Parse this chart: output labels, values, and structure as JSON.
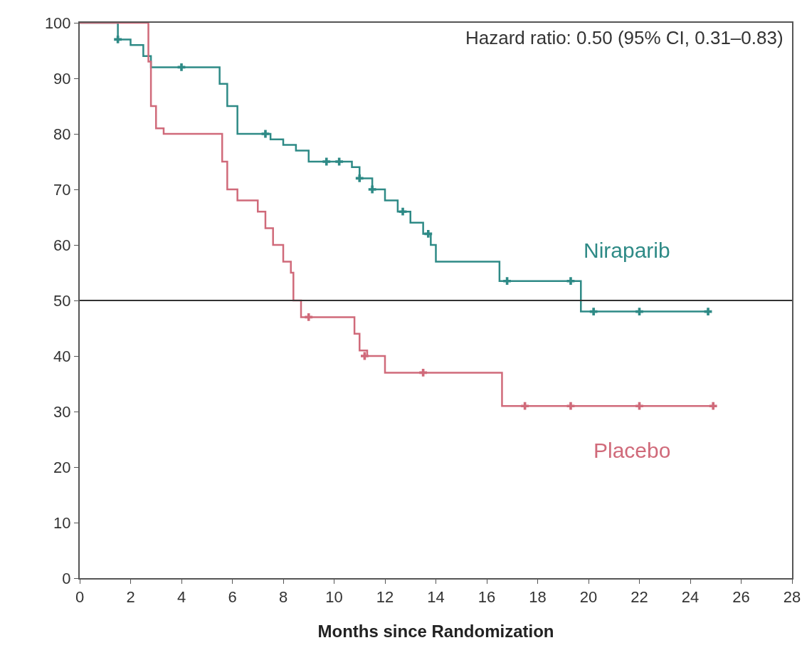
{
  "chart_data": {
    "type": "step",
    "xlabel": "Months since Randomization",
    "annotations": [
      "Hazard ratio: 0.50 (95% CI, 0.31–0.83)"
    ],
    "xlim": [
      0,
      28
    ],
    "xticks": [
      0,
      2,
      4,
      6,
      8,
      10,
      12,
      14,
      16,
      18,
      20,
      22,
      24,
      26,
      28
    ],
    "ylim": [
      0,
      100
    ],
    "yticks": [
      0,
      10,
      20,
      30,
      40,
      50,
      60,
      70,
      80,
      90,
      100
    ],
    "grid": false,
    "legend": false,
    "line_style": "solid",
    "ref_lines": [
      {
        "axis": "y",
        "value": 50,
        "color": "#333333"
      }
    ],
    "series": [
      {
        "name": "Niraparib",
        "color": "#2e8a86",
        "x": [
          0,
          1.2,
          1.5,
          2,
          2.5,
          2.8,
          5.3,
          5.5,
          5.8,
          6.2,
          7.5,
          8,
          8.5,
          9,
          10.7,
          11,
          11.5,
          12,
          12.5,
          13,
          13.5,
          13.8,
          14,
          16.5,
          19.7,
          24.7
        ],
        "values": [
          100,
          100,
          97,
          96,
          94,
          92,
          92,
          89,
          85,
          80,
          79,
          78,
          77,
          75,
          74,
          72,
          70,
          68,
          66,
          64,
          62,
          60,
          57,
          53.5,
          48,
          48
        ]
      },
      {
        "name": "Placebo",
        "color": "#d06a7a",
        "x": [
          0,
          2.5,
          2.7,
          2.8,
          3,
          3.3,
          5.5,
          5.6,
          5.8,
          6.2,
          7,
          7.3,
          7.6,
          8,
          8.3,
          8.4,
          8.7,
          10.8,
          11,
          11.3,
          12,
          16.6,
          24.9
        ],
        "values": [
          100,
          100,
          93,
          85,
          81,
          80,
          80,
          75,
          70,
          68,
          66,
          63,
          60,
          57,
          55,
          50,
          47,
          44,
          41,
          40,
          37,
          31,
          31
        ]
      },
      {
        "type": "scatter",
        "marker": "cross",
        "color": "#2e8a86",
        "x": [
          1.5,
          4,
          7.3,
          9.7,
          10.2,
          11,
          11.5,
          12.7,
          13.7,
          16.8,
          19.3,
          20.2,
          22,
          24.7
        ],
        "values": [
          97,
          92,
          80,
          75,
          75,
          72,
          70,
          66,
          62,
          53.5,
          53.5,
          48,
          48,
          48
        ]
      },
      {
        "type": "scatter",
        "marker": "cross",
        "color": "#d06a7a",
        "x": [
          9,
          11.2,
          13.5,
          17.5,
          19.3,
          22,
          24.9
        ],
        "values": [
          47,
          40,
          37,
          31,
          31,
          31,
          31
        ]
      }
    ]
  }
}
